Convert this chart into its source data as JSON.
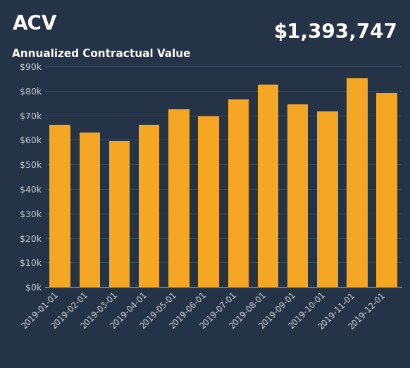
{
  "title": "ACV",
  "subtitle": "Annualized Contractual Value",
  "total_value": "$1,393,747",
  "categories": [
    "2019-01-01",
    "2019-02-01",
    "2019-03-01",
    "2019-04-01",
    "2019-05-01",
    "2019-06-01",
    "2019-07-01",
    "2019-08-01",
    "2019-09-01",
    "2019-10-01",
    "2019-11-01",
    "2019-12-01"
  ],
  "values": [
    66000,
    63000,
    59500,
    66000,
    72500,
    69500,
    76500,
    82500,
    74500,
    71500,
    85000,
    79000
  ],
  "bar_color": "#F5A623",
  "background_color": "#253347",
  "header_bg_color": "#0F1F2E",
  "text_color": "#FFFFFF",
  "axis_text_color": "#C8D0D8",
  "grid_color": "#374F63",
  "spine_color": "#8899AA",
  "ylim": [
    0,
    90000
  ],
  "ytick_step": 10000,
  "title_fontsize": 20,
  "subtitle_fontsize": 11,
  "total_fontsize": 20,
  "tick_fontsize": 9
}
